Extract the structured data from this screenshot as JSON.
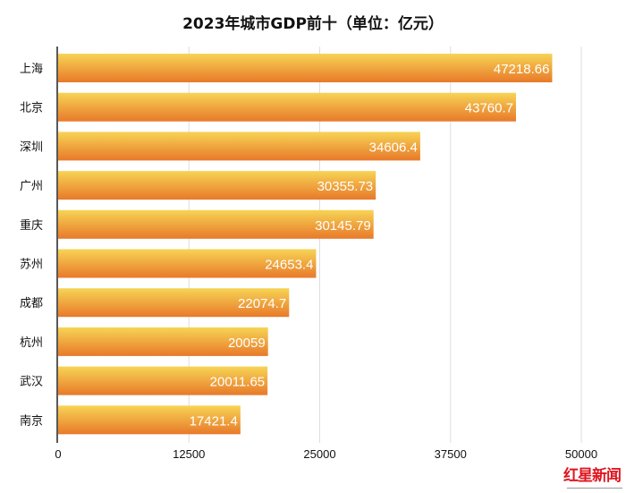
{
  "chart_data": {
    "type": "bar",
    "orientation": "horizontal",
    "title": "2023年城市GDP前十（单位：亿元）",
    "categories": [
      "上海",
      "北京",
      "深圳",
      "广州",
      "重庆",
      "苏州",
      "成都",
      "杭州",
      "武汉",
      "南京"
    ],
    "values": [
      47218.66,
      43760.7,
      34606.4,
      30355.73,
      30145.79,
      24653.4,
      22074.7,
      20059,
      20011.65,
      17421.4
    ],
    "data_labels": [
      "47218.66",
      "43760.7",
      "34606.4",
      "30355.73",
      "30145.79",
      "24653.4",
      "22074.7",
      "20059",
      "20011.65",
      "17421.4"
    ],
    "xlim": [
      0,
      50000
    ],
    "xticks": [
      "0",
      "12500",
      "25000",
      "37500",
      "50000"
    ],
    "xtick_values": [
      0,
      12500,
      25000,
      37500,
      50000
    ],
    "grid": true,
    "colors": {
      "bar_top": "#f7d455",
      "bar_bottom": "#e8792a",
      "grid": "#dddddd",
      "axis": "#222222",
      "label": "#ffffff"
    }
  },
  "logo": {
    "text": "红星新闻",
    "color": "#e0151f"
  }
}
